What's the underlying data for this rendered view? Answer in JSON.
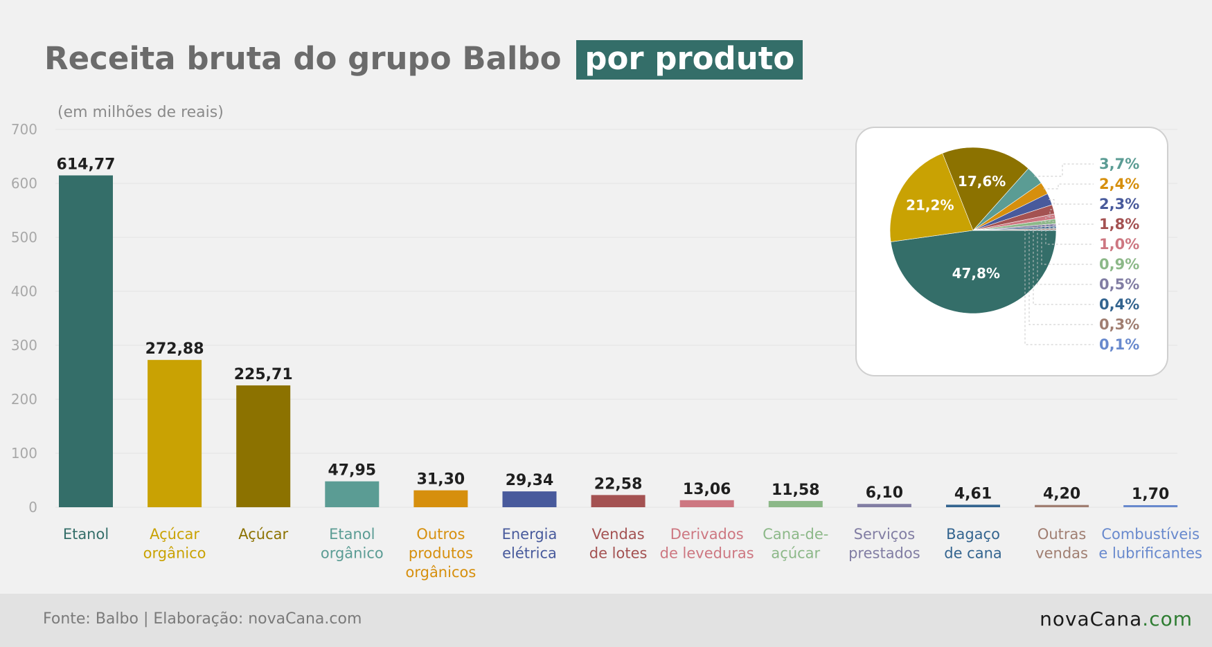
{
  "title": {
    "main": "Receita bruta do grupo Balbo",
    "highlight": "por produto"
  },
  "subtitle": "(em milhões de reais)",
  "footer": {
    "source": "Fonte: Balbo | Elaboração: novaCana.com",
    "logo_main": "novaCana",
    "logo_suffix": ".com"
  },
  "colors": {
    "title_highlight_bg": "#346e69",
    "background": "#f1f1f1",
    "footer_bg": "#e2e2e2"
  },
  "chart_data": [
    {
      "type": "bar",
      "ylim": [
        0,
        700
      ],
      "yticks": [
        0,
        100,
        200,
        300,
        400,
        500,
        600,
        700
      ],
      "grid": true,
      "categories": [
        [
          "Etanol"
        ],
        [
          "Açúcar",
          "orgânico"
        ],
        [
          "Açúcar"
        ],
        [
          "Etanol",
          "orgânico"
        ],
        [
          "Outros",
          "produtos",
          "orgânicos"
        ],
        [
          "Energia",
          "elétrica"
        ],
        [
          "Vendas",
          "de lotes"
        ],
        [
          "Derivados",
          "de leveduras"
        ],
        [
          "Cana-de-",
          "açúcar"
        ],
        [
          "Serviços",
          "prestados"
        ],
        [
          "Bagaço",
          "de cana"
        ],
        [
          "Outras",
          "vendas"
        ],
        [
          "Combustíveis",
          "e lubrificantes"
        ]
      ],
      "values": [
        614.77,
        272.88,
        225.71,
        47.95,
        31.3,
        29.34,
        22.58,
        13.06,
        11.58,
        6.1,
        4.61,
        4.2,
        1.7
      ],
      "value_labels": [
        "614,77",
        "272,88",
        "225,71",
        "47,95",
        "31,30",
        "29,34",
        "22,58",
        "13,06",
        "11,58",
        "6,10",
        "4,61",
        "4,20",
        "1,70"
      ],
      "colors": [
        "#346e69",
        "#c9a203",
        "#8c7200",
        "#5b9c94",
        "#d68f0d",
        "#485a9c",
        "#a45252",
        "#cd7781",
        "#8cb888",
        "#817da3",
        "#33648f",
        "#a07e71",
        "#6889cd"
      ]
    },
    {
      "type": "pie",
      "values": [
        47.8,
        21.2,
        17.6,
        3.7,
        2.4,
        2.3,
        1.8,
        1.0,
        0.9,
        0.5,
        0.4,
        0.3,
        0.1
      ],
      "labels": [
        "47,8%",
        "21,2%",
        "17,6%",
        "3,7%",
        "2,4%",
        "2,3%",
        "1,8%",
        "1,0%",
        "0,9%",
        "0,5%",
        "0,4%",
        "0,3%",
        "0,1%"
      ],
      "colors": [
        "#346e69",
        "#c9a203",
        "#8c7200",
        "#5b9c94",
        "#d68f0d",
        "#485a9c",
        "#a45252",
        "#cd7781",
        "#8cb888",
        "#817da3",
        "#33648f",
        "#a07e71",
        "#6889cd"
      ]
    }
  ]
}
